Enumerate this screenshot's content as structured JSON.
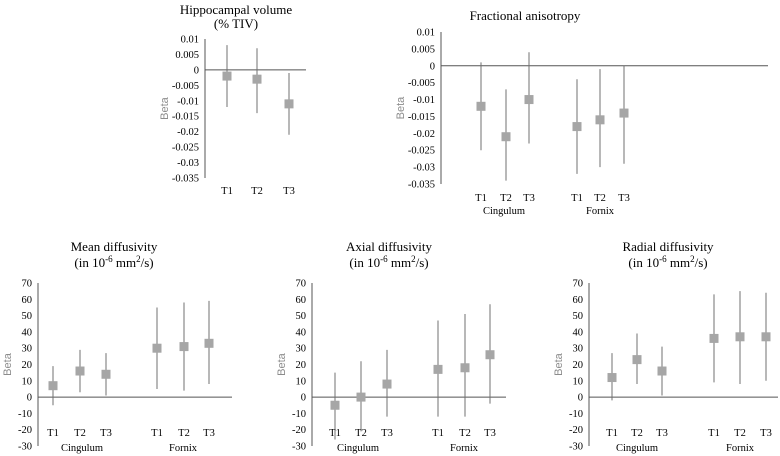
{
  "colors": {
    "marker": "#a6a6a6",
    "whisker": "#707070",
    "axis": "#555555"
  },
  "chart_data": [
    {
      "type": "scatter",
      "title_lines": [
        "Hippocampal volume",
        "(% TIV)"
      ],
      "ylabel": "Beta",
      "ylim": [
        -0.035,
        0.01
      ],
      "yticks": [
        "0.01",
        "0.005",
        "0",
        "-0.005",
        "-0.01",
        "-0.015",
        "-0.02",
        "-0.025",
        "-0.03",
        "-0.035"
      ],
      "categories": [
        "T1",
        "T2",
        "T3"
      ],
      "groups": [],
      "series": [
        {
          "name": "Hippocampal volume",
          "values": [
            -0.002,
            -0.003,
            -0.011
          ],
          "ci_low": [
            -0.012,
            -0.014,
            -0.021
          ],
          "ci_high": [
            0.008,
            0.007,
            -0.001
          ]
        }
      ]
    },
    {
      "type": "scatter",
      "title_lines": [
        "Fractional anisotropy"
      ],
      "ylabel": "Beta",
      "ylim": [
        -0.035,
        0.01
      ],
      "yticks": [
        "0.01",
        "0.005",
        "0",
        "-0.005",
        "-0.01",
        "-0.015",
        "-0.02",
        "-0.025",
        "-0.03",
        "-0.035"
      ],
      "categories": [
        "T1",
        "T2",
        "T3",
        "T1",
        "T2",
        "T3"
      ],
      "groups": [
        "Cingulum",
        "Fornix"
      ],
      "series": [
        {
          "name": "Fractional anisotropy",
          "values": [
            -0.012,
            -0.021,
            -0.01,
            -0.018,
            -0.016,
            -0.014
          ],
          "ci_low": [
            -0.025,
            -0.034,
            -0.023,
            -0.032,
            -0.03,
            -0.029
          ],
          "ci_high": [
            0.001,
            -0.007,
            0.004,
            -0.004,
            -0.001,
            0.0
          ]
        }
      ]
    },
    {
      "type": "scatter",
      "title_lines": [
        "Mean diffusivity",
        "(in 10",
        "-6",
        " mm",
        "2",
        "/s)"
      ],
      "ylabel": "Beta",
      "ylim": [
        -30,
        70
      ],
      "yticks": [
        "70",
        "60",
        "50",
        "40",
        "30",
        "20",
        "10",
        "0",
        "-10",
        "-20",
        "-30"
      ],
      "categories": [
        "T1",
        "T2",
        "T3",
        "T1",
        "T2",
        "T3"
      ],
      "groups": [
        "Cingulum",
        "Fornix"
      ],
      "series": [
        {
          "name": "Mean diffusivity",
          "values": [
            7,
            16,
            14,
            30,
            31,
            33
          ],
          "ci_low": [
            -5,
            3,
            1,
            5,
            4,
            8
          ],
          "ci_high": [
            19,
            29,
            27,
            55,
            58,
            59
          ]
        }
      ]
    },
    {
      "type": "scatter",
      "title_lines": [
        "Axial diffusivity",
        "(in 10",
        "-6",
        " mm",
        "2",
        "/s)"
      ],
      "ylabel": "Beta",
      "ylim": [
        -30,
        70
      ],
      "yticks": [
        "70",
        "60",
        "50",
        "40",
        "30",
        "20",
        "10",
        "0",
        "-10",
        "-20",
        "-30"
      ],
      "categories": [
        "T1",
        "T2",
        "T3",
        "T1",
        "T2",
        "T3"
      ],
      "groups": [
        "Cingulum",
        "Fornix"
      ],
      "series": [
        {
          "name": "Axial diffusivity",
          "values": [
            -5,
            0,
            8,
            17,
            18,
            26
          ],
          "ci_low": [
            -26,
            -21,
            -12,
            -12,
            -12,
            -4
          ],
          "ci_high": [
            15,
            22,
            29,
            47,
            51,
            57
          ]
        }
      ]
    },
    {
      "type": "scatter",
      "title_lines": [
        "Radial diffusivity",
        "(in 10",
        "-6",
        " mm",
        "2",
        "/s)"
      ],
      "ylabel": "Beta",
      "ylim": [
        -30,
        70
      ],
      "yticks": [
        "70",
        "60",
        "50",
        "40",
        "30",
        "20",
        "10",
        "0",
        "-10",
        "-20",
        "-30"
      ],
      "categories": [
        "T1",
        "T2",
        "T3",
        "T1",
        "T2",
        "T3"
      ],
      "groups": [
        "Cingulum",
        "Fornix"
      ],
      "series": [
        {
          "name": "Radial diffusivity",
          "values": [
            12,
            23,
            16,
            36,
            37,
            37
          ],
          "ci_low": [
            -2,
            8,
            1,
            9,
            8,
            10
          ],
          "ci_high": [
            27,
            39,
            31,
            63,
            65,
            64
          ]
        }
      ]
    }
  ]
}
